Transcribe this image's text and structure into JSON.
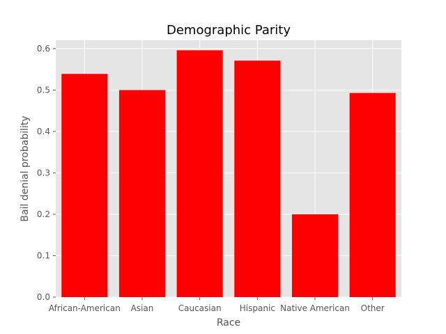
{
  "chart_data": {
    "type": "bar",
    "title": "Demographic Parity",
    "xlabel": "Race",
    "ylabel": "Bail denial probability",
    "categories": [
      "African-American",
      "Asian",
      "Caucasian",
      "Hispanic",
      "Native American",
      "Other"
    ],
    "values": [
      0.539,
      0.5,
      0.596,
      0.571,
      0.2,
      0.493
    ],
    "ylim": [
      0,
      0.62
    ],
    "yticks": [
      "0.0",
      "0.1",
      "0.2",
      "0.3",
      "0.4",
      "0.5",
      "0.6"
    ],
    "grid": true,
    "bar_color": "#ff0000",
    "background_color": "#e5e5e5",
    "grid_color": "#ffffff"
  }
}
